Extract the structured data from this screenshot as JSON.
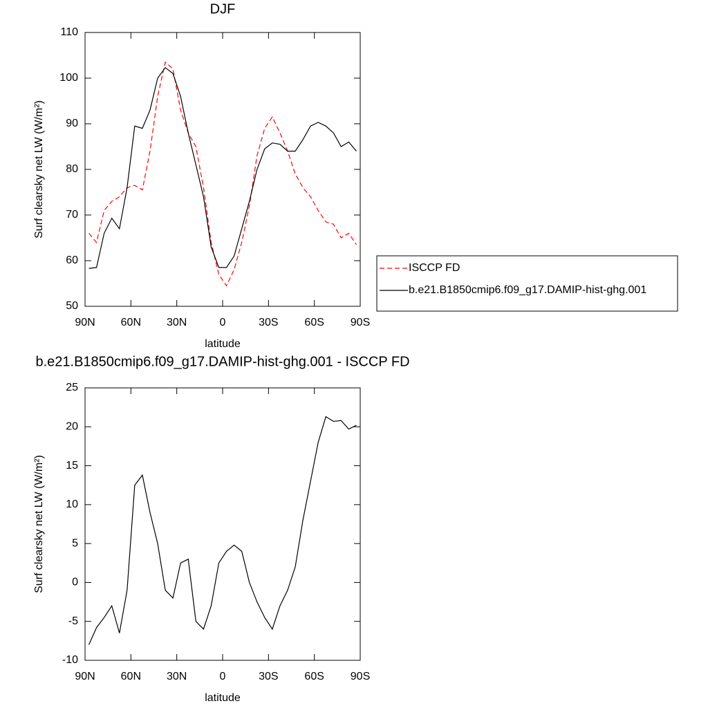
{
  "chart_data": [
    {
      "type": "line",
      "title": "DJF",
      "xlabel": "latitude",
      "ylabel": "Surf clearsky net LW (W/m²)",
      "x": [
        87.5,
        82.5,
        77.5,
        72.5,
        67.5,
        62.5,
        57.5,
        52.5,
        47.5,
        42.5,
        37.5,
        32.5,
        27.5,
        22.5,
        17.5,
        12.5,
        7.5,
        2.5,
        -2.5,
        -7.5,
        -12.5,
        -17.5,
        -22.5,
        -27.5,
        -32.5,
        -37.5,
        -42.5,
        -47.5,
        -52.5,
        -57.5,
        -62.5,
        -67.5,
        -72.5,
        -77.5,
        -82.5,
        -87.5
      ],
      "series": [
        {
          "name": "ISCCP FD",
          "color": "#ff0000",
          "line_style": "dashed",
          "values": [
            66,
            64,
            71,
            73,
            74,
            76,
            76.5,
            75.5,
            84,
            96,
            103.5,
            102,
            93,
            88,
            85,
            76,
            64,
            57,
            54.5,
            58,
            64,
            72,
            83,
            89,
            91.5,
            88,
            84,
            79,
            76,
            74,
            71,
            68.5,
            68,
            65,
            66,
            63.5
          ]
        },
        {
          "name": "b.e21.B1850cmip6.f09_g17.DAMIP-hist-ghg.001",
          "color": "#000000",
          "line_style": "solid",
          "values": [
            58.3,
            58.5,
            66,
            69.3,
            67,
            76,
            89.5,
            89,
            93,
            100,
            102.3,
            101,
            96,
            88,
            81,
            74,
            63,
            58.5,
            58.5,
            61,
            67,
            73,
            80,
            84.5,
            85.8,
            85.5,
            84,
            84,
            86.5,
            89.5,
            90.3,
            89.5,
            88,
            85,
            86,
            84
          ]
        }
      ],
      "xlim": [
        90,
        -90
      ],
      "xticks": [
        {
          "value": 90,
          "label": "90N"
        },
        {
          "value": 60,
          "label": "60N"
        },
        {
          "value": 30,
          "label": "30N"
        },
        0,
        {
          "value": -30,
          "label": "30S"
        },
        {
          "value": -60,
          "label": "60S"
        },
        {
          "value": -90,
          "label": "90S"
        }
      ],
      "ylim": [
        50,
        110
      ],
      "yticks": [
        50,
        60,
        70,
        80,
        90,
        100,
        110
      ],
      "legend": "right"
    },
    {
      "type": "line",
      "title": "b.e21.B1850cmip6.f09_g17.DAMIP-hist-ghg.001 - ISCCP FD",
      "xlabel": "latitude",
      "ylabel": "Surf clearsky net LW (W/m²)",
      "x": [
        87.5,
        82.5,
        77.5,
        72.5,
        67.5,
        62.5,
        57.5,
        52.5,
        47.5,
        42.5,
        37.5,
        32.5,
        27.5,
        22.5,
        17.5,
        12.5,
        7.5,
        2.5,
        -2.5,
        -7.5,
        -12.5,
        -17.5,
        -22.5,
        -27.5,
        -32.5,
        -37.5,
        -42.5,
        -47.5,
        -52.5,
        -57.5,
        -62.5,
        -67.5,
        -72.5,
        -77.5,
        -82.5,
        -87.5
      ],
      "series": [
        {
          "color": "#000000",
          "line_style": "solid",
          "values": [
            -8,
            -5.8,
            -4.5,
            -3,
            -6.5,
            -1,
            12.5,
            13.8,
            9,
            5,
            -1,
            -2,
            2.5,
            3,
            -5,
            -6,
            -3,
            2.5,
            4,
            4.8,
            4,
            0,
            -2.5,
            -4.5,
            -6,
            -3,
            -1,
            2,
            8,
            13,
            18,
            21.3,
            20.7,
            20.8,
            19.7,
            20.2
          ]
        }
      ],
      "xlim": [
        90,
        -90
      ],
      "xticks": [
        {
          "value": 90,
          "label": "90N"
        },
        {
          "value": 60,
          "label": "60N"
        },
        {
          "value": 30,
          "label": "30N"
        },
        0,
        {
          "value": -30,
          "label": "30S"
        },
        {
          "value": -60,
          "label": "60S"
        },
        {
          "value": -90,
          "label": "90S"
        }
      ],
      "ylim": [
        -10,
        25
      ],
      "yticks": [
        -10,
        -5,
        0,
        5,
        10,
        15,
        20,
        25
      ]
    }
  ]
}
